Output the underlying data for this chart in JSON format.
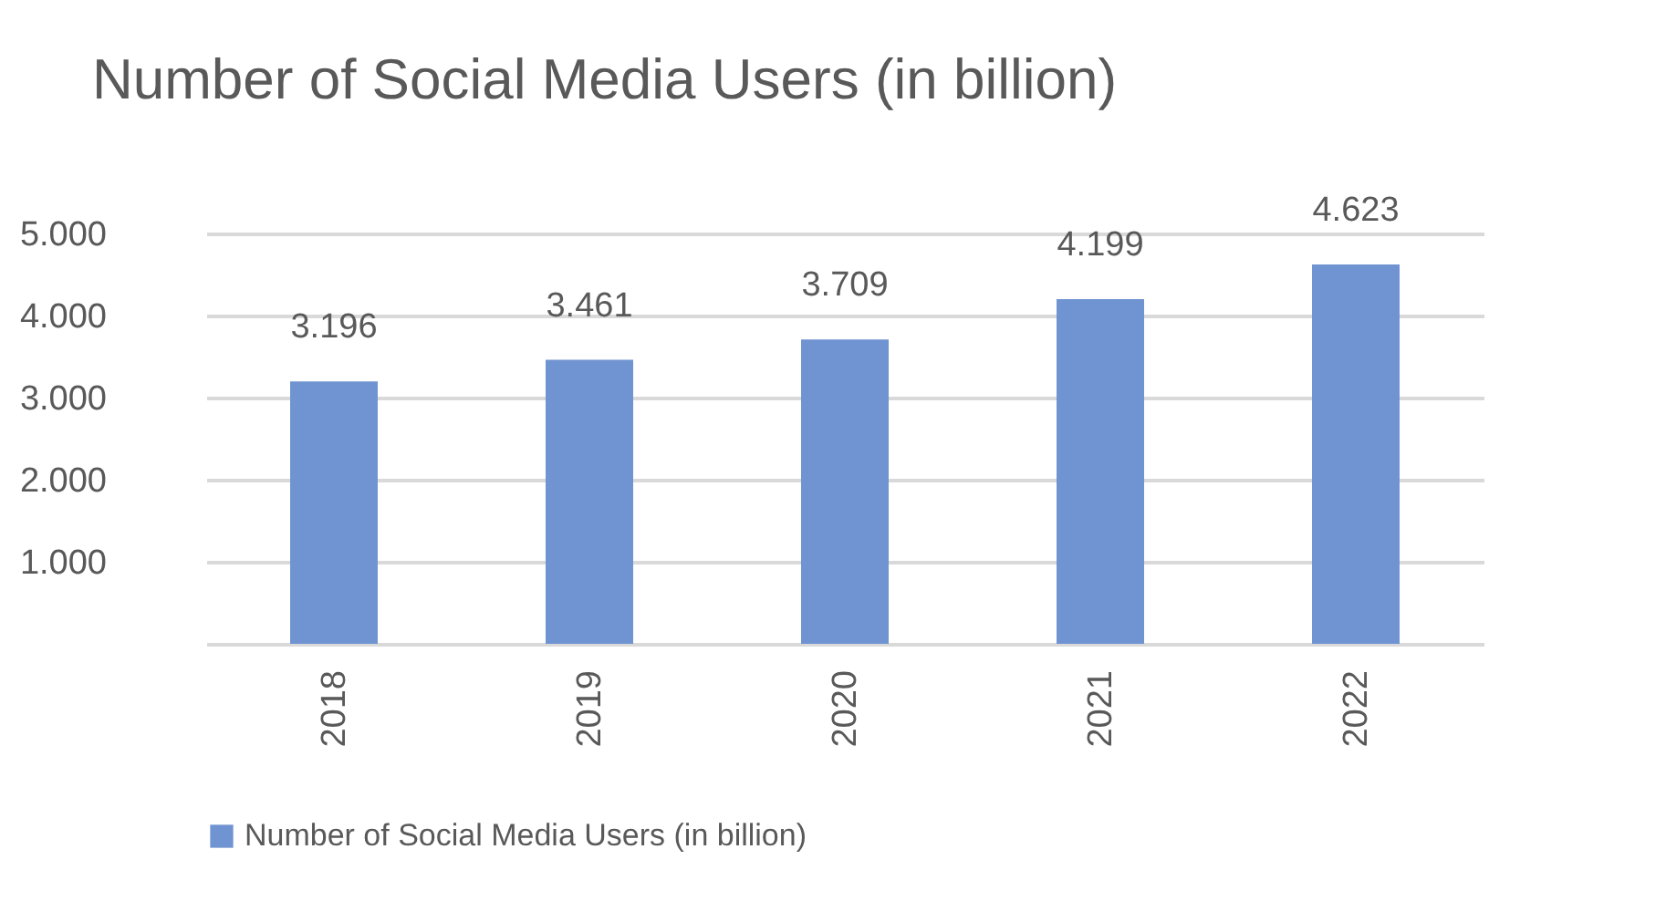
{
  "chart_data": {
    "type": "bar",
    "title": "Number of Social Media Users (in billion)",
    "categories": [
      "2018",
      "2019",
      "2020",
      "2021",
      "2022"
    ],
    "series": [
      {
        "name": "Number of Social Media Users (in billion)",
        "color": "#7094d1",
        "values": [
          3.196,
          3.461,
          3.709,
          4.199,
          4.623
        ]
      }
    ],
    "value_labels": [
      "3.196",
      "3.461",
      "3.709",
      "4.199",
      "4.623"
    ],
    "ylim": [
      0,
      5
    ],
    "yticks": [
      {
        "value": 0,
        "label": null
      },
      {
        "value": 1,
        "label": "1.000"
      },
      {
        "value": 2,
        "label": "2.000"
      },
      {
        "value": 3,
        "label": "3.000"
      },
      {
        "value": 4,
        "label": "4.000"
      },
      {
        "value": 5,
        "label": "5.000"
      }
    ],
    "grid": "y",
    "legend": "bottom"
  }
}
